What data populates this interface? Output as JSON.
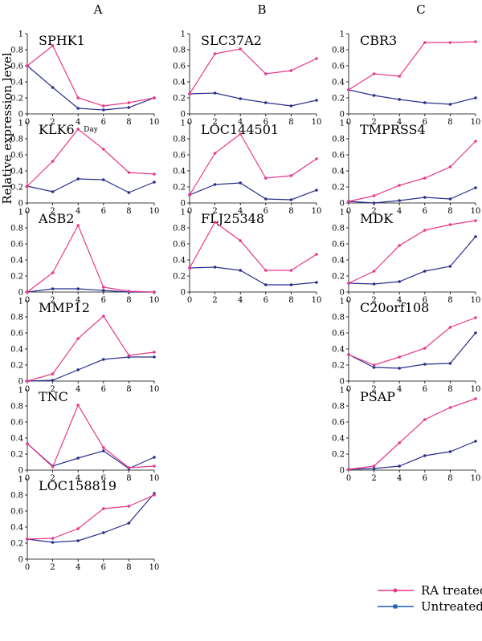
{
  "column_labels": [
    "A",
    "B",
    "C"
  ],
  "ylabel": "Relative expression level",
  "xlabel": "Day",
  "legend": {
    "placement": "bottom-right",
    "entries": [
      {
        "name": "RA treated",
        "color": "#e8388a"
      },
      {
        "name": "Untreated",
        "color": "#2b2f8c"
      }
    ]
  },
  "colors": {
    "ra_treated": "#e8388a",
    "untreated": "#2b2f8c",
    "axis": "#000000"
  },
  "chart_data": [
    {
      "type": "line",
      "title": "SPHK1",
      "x": [
        0,
        2,
        4,
        6,
        8,
        10
      ],
      "xticks": [
        "0",
        "2",
        "4",
        "6",
        "8",
        "10"
      ],
      "yticks": [
        "0",
        "0.2",
        "0.4",
        "0.6",
        "0.8",
        "1"
      ],
      "ylim": [
        0,
        1
      ],
      "series": [
        {
          "name": "RA treated",
          "values": [
            0.6,
            0.85,
            0.2,
            0.1,
            0.14,
            0.2
          ]
        },
        {
          "name": "Untreated",
          "values": [
            0.6,
            0.33,
            0.07,
            0.05,
            0.08,
            0.2
          ]
        }
      ]
    },
    {
      "type": "line",
      "title": "KLK6",
      "x": [
        0,
        2,
        4,
        6,
        8,
        10
      ],
      "xticks": [
        "0",
        "2",
        "4",
        "6",
        "8",
        "10"
      ],
      "yticks": [
        "0",
        "0.2",
        "0.4",
        "0.6",
        "0.8",
        "1"
      ],
      "ylim": [
        0,
        1
      ],
      "series": [
        {
          "name": "RA treated",
          "values": [
            0.21,
            0.52,
            0.92,
            0.67,
            0.38,
            0.36
          ]
        },
        {
          "name": "Untreated",
          "values": [
            0.21,
            0.14,
            0.3,
            0.29,
            0.13,
            0.26
          ]
        }
      ]
    },
    {
      "type": "line",
      "title": "ASB2",
      "x": [
        0,
        2,
        4,
        6,
        8,
        10
      ],
      "xticks": [
        "0",
        "2",
        "4",
        "6",
        "8",
        "10"
      ],
      "yticks": [
        "0",
        "0.2",
        "0.4",
        "0.6",
        "0.8",
        "1"
      ],
      "ylim": [
        0,
        1
      ],
      "series": [
        {
          "name": "RA treated",
          "values": [
            0.0,
            0.24,
            0.83,
            0.06,
            0.01,
            0.0
          ]
        },
        {
          "name": "Untreated",
          "values": [
            0.0,
            0.04,
            0.04,
            0.02,
            0.0,
            0.0
          ]
        }
      ]
    },
    {
      "type": "line",
      "title": "MMP12",
      "x": [
        0,
        2,
        4,
        6,
        8,
        10
      ],
      "xticks": [
        "0",
        "2",
        "4",
        "6",
        "8",
        "10"
      ],
      "yticks": [
        "0",
        "0.2",
        "0.4",
        "0.6",
        "0.8",
        "1"
      ],
      "ylim": [
        0,
        1
      ],
      "series": [
        {
          "name": "RA treated",
          "values": [
            0.0,
            0.09,
            0.53,
            0.81,
            0.32,
            0.36
          ]
        },
        {
          "name": "Untreated",
          "values": [
            0.0,
            0.01,
            0.14,
            0.27,
            0.3,
            0.3
          ]
        }
      ]
    },
    {
      "type": "line",
      "title": "TNC",
      "x": [
        0,
        2,
        4,
        6,
        8,
        10
      ],
      "xticks": [
        "0",
        "2",
        "4",
        "6",
        "8",
        "10"
      ],
      "yticks": [
        "0",
        "0.2",
        "0.4",
        "0.6",
        "0.8",
        "1"
      ],
      "ylim": [
        0,
        1
      ],
      "series": [
        {
          "name": "RA treated",
          "values": [
            0.33,
            0.04,
            0.81,
            0.28,
            0.03,
            0.05
          ]
        },
        {
          "name": "Untreated",
          "values": [
            0.33,
            0.05,
            0.15,
            0.24,
            0.02,
            0.16
          ]
        }
      ]
    },
    {
      "type": "line",
      "title": "LOC158819",
      "x": [
        0,
        2,
        4,
        6,
        8,
        10
      ],
      "xticks": [
        "0",
        "2",
        "4",
        "6",
        "8",
        "10"
      ],
      "yticks": [
        "0",
        "0.2",
        "0.4",
        "0.6",
        "0.8",
        "1"
      ],
      "ylim": [
        0,
        1
      ],
      "series": [
        {
          "name": "RA treated",
          "values": [
            0.25,
            0.26,
            0.38,
            0.63,
            0.66,
            0.8
          ]
        },
        {
          "name": "Untreated",
          "values": [
            0.25,
            0.21,
            0.23,
            0.33,
            0.45,
            0.82
          ]
        }
      ]
    },
    {
      "type": "line",
      "title": "SLC37A2",
      "x": [
        0,
        2,
        4,
        6,
        8,
        10
      ],
      "xticks": [
        "0",
        "2",
        "4",
        "6",
        "8",
        "10"
      ],
      "yticks": [
        "0",
        "0.2",
        "0.4",
        "0.6",
        "0.8",
        "1"
      ],
      "ylim": [
        0,
        1
      ],
      "series": [
        {
          "name": "RA treated",
          "values": [
            0.25,
            0.75,
            0.81,
            0.5,
            0.54,
            0.69
          ]
        },
        {
          "name": "Untreated",
          "values": [
            0.25,
            0.26,
            0.19,
            0.14,
            0.1,
            0.17
          ]
        }
      ]
    },
    {
      "type": "line",
      "title": "LOC144501",
      "x": [
        0,
        2,
        4,
        6,
        8,
        10
      ],
      "xticks": [
        "0",
        "2",
        "4",
        "6",
        "8",
        "10"
      ],
      "yticks": [
        "0",
        "0.2",
        "0.4",
        "0.6",
        "0.8",
        "1"
      ],
      "ylim": [
        0,
        1
      ],
      "series": [
        {
          "name": "RA treated",
          "values": [
            0.1,
            0.62,
            0.86,
            0.31,
            0.34,
            0.55
          ]
        },
        {
          "name": "Untreated",
          "values": [
            0.1,
            0.23,
            0.25,
            0.05,
            0.04,
            0.16
          ]
        }
      ]
    },
    {
      "type": "line",
      "title": "FLJ25348",
      "x": [
        0,
        2,
        4,
        6,
        8,
        10
      ],
      "xticks": [
        "0",
        "2",
        "4",
        "6",
        "8",
        "10"
      ],
      "yticks": [
        "0",
        "0.2",
        "0.4",
        "0.6",
        "0.8",
        "1"
      ],
      "ylim": [
        0,
        1
      ],
      "series": [
        {
          "name": "RA treated",
          "values": [
            0.3,
            0.87,
            0.64,
            0.27,
            0.27,
            0.47
          ]
        },
        {
          "name": "Untreated",
          "values": [
            0.3,
            0.31,
            0.27,
            0.09,
            0.09,
            0.12
          ]
        }
      ]
    },
    {
      "type": "line",
      "title": "CBR3",
      "x": [
        0,
        2,
        4,
        6,
        8,
        10
      ],
      "xticks": [
        "0",
        "2",
        "4",
        "6",
        "8",
        "10"
      ],
      "yticks": [
        "0",
        "0.2",
        "0.4",
        "0.6",
        "0.8",
        "1"
      ],
      "ylim": [
        0,
        1
      ],
      "series": [
        {
          "name": "RA treated",
          "values": [
            0.3,
            0.5,
            0.47,
            0.89,
            0.89,
            0.9
          ]
        },
        {
          "name": "Untreated",
          "values": [
            0.3,
            0.23,
            0.18,
            0.14,
            0.12,
            0.2
          ]
        }
      ]
    },
    {
      "type": "line",
      "title": "TMPRSS4",
      "x": [
        0,
        2,
        4,
        6,
        8,
        10
      ],
      "xticks": [
        "0",
        "2",
        "4",
        "6",
        "8",
        "10"
      ],
      "yticks": [
        "0",
        "0.2",
        "0.4",
        "0.6",
        "0.8",
        "1"
      ],
      "ylim": [
        0,
        1
      ],
      "series": [
        {
          "name": "RA treated",
          "values": [
            0.02,
            0.09,
            0.22,
            0.31,
            0.45,
            0.77
          ]
        },
        {
          "name": "Untreated",
          "values": [
            0.02,
            0.0,
            0.03,
            0.07,
            0.05,
            0.19
          ]
        }
      ]
    },
    {
      "type": "line",
      "title": "MDK",
      "x": [
        0,
        2,
        4,
        6,
        8,
        10
      ],
      "xticks": [
        "0",
        "2",
        "4",
        "6",
        "8",
        "10"
      ],
      "yticks": [
        "0",
        "0.2",
        "0.4",
        "0.6",
        "0.8",
        "1"
      ],
      "ylim": [
        0,
        1
      ],
      "series": [
        {
          "name": "RA treated",
          "values": [
            0.11,
            0.26,
            0.58,
            0.77,
            0.84,
            0.89
          ]
        },
        {
          "name": "Untreated",
          "values": [
            0.11,
            0.1,
            0.13,
            0.26,
            0.32,
            0.69
          ]
        }
      ]
    },
    {
      "type": "line",
      "title": "C20orf108",
      "x": [
        0,
        2,
        4,
        6,
        8,
        10
      ],
      "xticks": [
        "0",
        "2",
        "4",
        "6",
        "8",
        "10"
      ],
      "yticks": [
        "0",
        "0.2",
        "0.4",
        "0.6",
        "0.8",
        "1"
      ],
      "ylim": [
        0,
        1
      ],
      "series": [
        {
          "name": "RA treated",
          "values": [
            0.33,
            0.2,
            0.3,
            0.41,
            0.67,
            0.79
          ]
        },
        {
          "name": "Untreated",
          "values": [
            0.33,
            0.17,
            0.16,
            0.21,
            0.22,
            0.6
          ]
        }
      ]
    },
    {
      "type": "line",
      "title": "PSAP",
      "x": [
        0,
        2,
        4,
        6,
        8,
        10
      ],
      "xticks": [
        "0",
        "2",
        "4",
        "6",
        "8",
        "10"
      ],
      "yticks": [
        "0",
        "0.2",
        "0.4",
        "0.6",
        "0.8",
        "1"
      ],
      "ylim": [
        0,
        1
      ],
      "series": [
        {
          "name": "RA treated",
          "values": [
            0.01,
            0.05,
            0.34,
            0.63,
            0.78,
            0.89
          ]
        },
        {
          "name": "Untreated",
          "values": [
            0.01,
            0.02,
            0.05,
            0.18,
            0.23,
            0.36
          ]
        }
      ]
    }
  ]
}
